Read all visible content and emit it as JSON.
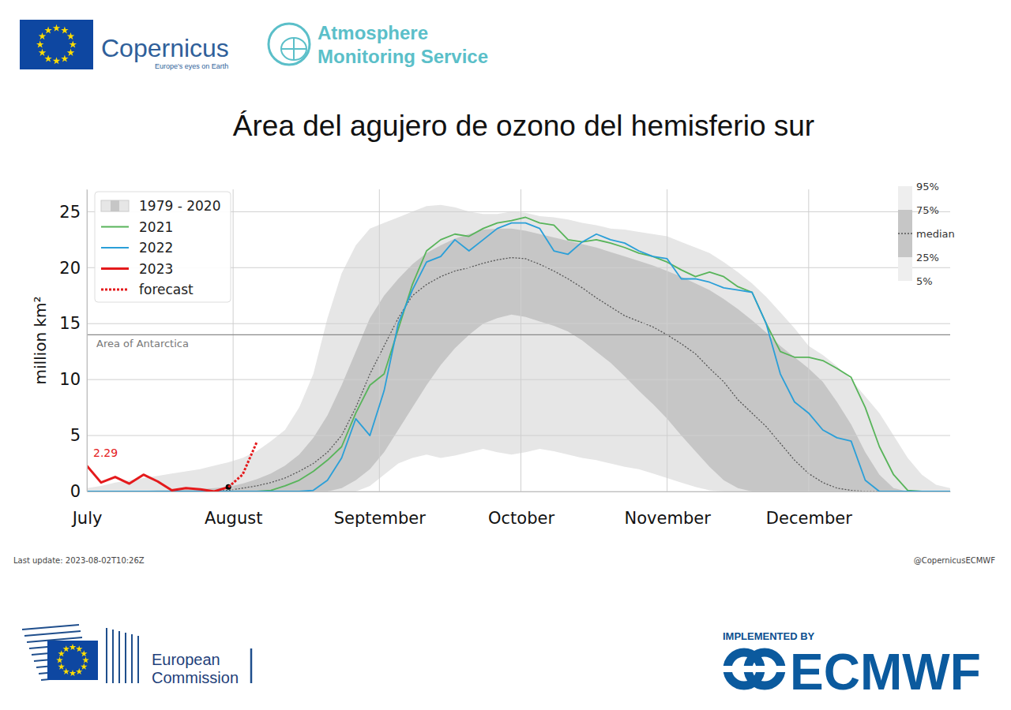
{
  "header": {
    "copernicus": "Copernicus",
    "copernicus_tagline": "Europe's eyes on Earth",
    "service": [
      "Atmosphere",
      "Monitoring Service"
    ]
  },
  "footer": {
    "last_update": "Last update: 2023-08-02T10:26Z",
    "credit": "@CopernicusECMWF",
    "commission": [
      "European",
      "Commission"
    ],
    "implemented_by": "IMPLEMENTED BY",
    "ecmwf": "ECMWF"
  },
  "chart_data": {
    "type": "line",
    "title": "Área del agujero de ozono del hemisferio sur",
    "y_label": "million km²",
    "x": [
      0,
      3,
      6,
      9,
      12,
      15,
      18,
      21,
      24,
      27,
      30,
      33,
      36,
      39,
      42,
      45,
      48,
      51,
      54,
      57,
      60,
      63,
      66,
      69,
      72,
      75,
      78,
      81,
      84,
      87,
      90,
      93,
      96,
      99,
      102,
      105,
      108,
      111,
      114,
      117,
      120,
      123,
      126,
      129,
      132,
      135,
      138,
      141,
      144,
      147,
      150,
      153,
      156,
      159,
      162,
      165,
      168,
      171,
      174,
      177,
      180,
      183
    ],
    "xlim": [
      0,
      183
    ],
    "xticks": [
      {
        "value": 0,
        "label": "July"
      },
      {
        "value": 31,
        "label": "August"
      },
      {
        "value": 62,
        "label": "September"
      },
      {
        "value": 92,
        "label": "October"
      },
      {
        "value": 123,
        "label": "November"
      },
      {
        "value": 153,
        "label": "December"
      }
    ],
    "ylim": [
      0,
      27
    ],
    "yticks": [
      0,
      5,
      10,
      15,
      20,
      25
    ],
    "grid": true,
    "legend": "upper left",
    "climatology": {
      "name": "1979 - 2020",
      "colors": [
        "#e6e6e6",
        "#c6c6c6"
      ],
      "labels": {
        "p95": "95%",
        "p75": "75%",
        "median": "median",
        "p25": "25%",
        "p5": "5%"
      },
      "p95": [
        0.3,
        0.5,
        0.8,
        1.0,
        1.2,
        1.4,
        1.6,
        1.8,
        2.0,
        2.3,
        2.6,
        3.0,
        3.6,
        4.5,
        5.5,
        7.5,
        10.5,
        15.5,
        19.5,
        22.0,
        23.5,
        24.0,
        24.5,
        25.0,
        25.5,
        25.6,
        25.4,
        25.0,
        24.8,
        24.8,
        25.0,
        24.9,
        24.6,
        24.5,
        24.3,
        24.0,
        23.8,
        23.5,
        23.4,
        23.2,
        23.0,
        22.8,
        22.3,
        21.8,
        21.3,
        20.5,
        19.6,
        18.6,
        17.4,
        16.0,
        14.6,
        13.0,
        12.2,
        11.2,
        10.0,
        8.5,
        7.0,
        5.0,
        3.0,
        1.5,
        0.6,
        0.3
      ],
      "p75": [
        0,
        0,
        0,
        0,
        0.05,
        0.1,
        0.1,
        0.15,
        0.2,
        0.3,
        0.4,
        0.7,
        1.1,
        1.6,
        2.3,
        3.3,
        4.8,
        6.8,
        9.5,
        12.5,
        15.5,
        17.5,
        19.0,
        20.3,
        21.3,
        22.0,
        22.6,
        23.0,
        23.4,
        23.5,
        23.5,
        23.3,
        23.0,
        22.7,
        22.4,
        22.1,
        21.8,
        21.4,
        21.0,
        20.6,
        20.2,
        19.7,
        19.2,
        18.6,
        18.0,
        17.2,
        16.3,
        15.3,
        14.2,
        13.0,
        12.0,
        11.0,
        9.8,
        8.0,
        6.0,
        3.5,
        1.5,
        0.3,
        0,
        0,
        0,
        0
      ],
      "median": [
        0,
        0,
        0,
        0,
        0,
        0,
        0,
        0,
        0,
        0,
        0.1,
        0.3,
        0.5,
        0.8,
        1.2,
        1.8,
        2.5,
        3.5,
        5.0,
        7.5,
        10.5,
        13.0,
        15.5,
        17.5,
        18.5,
        19.2,
        19.7,
        20.0,
        20.4,
        20.7,
        20.9,
        20.8,
        20.3,
        19.7,
        19.0,
        18.2,
        17.3,
        16.5,
        15.7,
        15.2,
        14.7,
        14.0,
        13.2,
        12.3,
        11.0,
        9.8,
        8.2,
        7.0,
        5.8,
        4.3,
        2.8,
        1.6,
        0.8,
        0.3,
        0.1,
        0,
        0,
        0,
        0,
        0,
        0,
        0
      ],
      "p25": [
        0,
        0,
        0,
        0,
        0,
        0,
        0,
        0,
        0,
        0,
        0,
        0,
        0,
        0,
        0,
        0,
        0,
        0,
        0.3,
        1.0,
        2.0,
        3.5,
        5.5,
        7.5,
        9.5,
        11.3,
        12.8,
        14.0,
        15.0,
        15.5,
        15.8,
        15.6,
        15.2,
        14.8,
        14.3,
        13.5,
        12.5,
        11.5,
        10.3,
        9.0,
        7.8,
        6.5,
        5.0,
        3.6,
        2.2,
        1.0,
        0.3,
        0,
        0,
        0,
        0,
        0,
        0,
        0,
        0,
        0,
        0,
        0,
        0,
        0,
        0,
        0
      ],
      "p5": [
        0,
        0,
        0,
        0,
        0,
        0,
        0,
        0,
        0,
        0,
        0,
        0,
        0,
        0,
        0,
        0,
        0,
        0,
        0,
        0,
        0.5,
        1.5,
        2.5,
        3.0,
        3.3,
        3.0,
        3.2,
        3.5,
        3.8,
        3.5,
        3.3,
        3.5,
        3.8,
        3.6,
        3.3,
        3.0,
        2.8,
        2.5,
        2.2,
        2.0,
        1.6,
        1.2,
        0.8,
        0.4,
        0.1,
        0,
        0,
        0,
        0,
        0,
        0,
        0,
        0,
        0,
        0,
        0,
        0,
        0,
        0,
        0,
        0,
        0
      ]
    },
    "series": [
      {
        "name": "2021",
        "color": "#58b45a",
        "values": [
          0,
          0,
          0,
          0,
          0,
          0,
          0,
          0,
          0,
          0,
          0,
          0,
          0,
          0.1,
          0.5,
          1.0,
          1.8,
          2.8,
          4.0,
          7.0,
          9.5,
          10.5,
          14.5,
          18.5,
          21.5,
          22.5,
          23.0,
          22.8,
          23.5,
          24.0,
          24.2,
          24.5,
          24.0,
          23.8,
          22.5,
          22.3,
          22.5,
          22.2,
          21.8,
          21.3,
          21.0,
          20.5,
          19.8,
          19.2,
          19.6,
          19.2,
          18.3,
          17.8,
          15.0,
          12.5,
          12.0,
          12.0,
          11.7,
          11.0,
          10.2,
          7.5,
          4.0,
          1.5,
          0.1,
          0,
          0,
          0
        ]
      },
      {
        "name": "2022",
        "color": "#2a9fd8",
        "values": [
          0,
          0,
          0,
          0,
          0,
          0,
          0,
          0,
          0,
          0,
          0,
          0,
          0,
          0,
          0,
          0,
          0.1,
          1.0,
          3.0,
          6.5,
          5.0,
          9.0,
          15.0,
          18.0,
          20.5,
          21.0,
          22.5,
          21.5,
          22.5,
          23.5,
          24.0,
          24.0,
          23.5,
          21.5,
          21.2,
          22.3,
          23.0,
          22.5,
          22.2,
          21.5,
          21.0,
          20.8,
          19.0,
          19.0,
          18.7,
          18.2,
          18.0,
          17.8,
          15.0,
          10.5,
          8.0,
          7.0,
          5.5,
          4.8,
          4.5,
          1.0,
          0,
          0,
          0,
          0,
          0,
          0
        ]
      },
      {
        "name": "2023",
        "color": "#e41a1c",
        "marker": "last",
        "values": [
          2.29,
          0.8,
          1.3,
          0.7,
          1.5,
          0.9,
          0.1,
          0.3,
          0.2,
          0.0,
          0.4,
          null,
          null,
          null,
          null,
          null,
          null,
          null,
          null,
          null,
          null,
          null,
          null,
          null,
          null,
          null,
          null,
          null,
          null,
          null,
          null,
          null,
          null,
          null,
          null,
          null,
          null,
          null,
          null,
          null,
          null,
          null,
          null,
          null,
          null,
          null,
          null,
          null,
          null,
          null,
          null,
          null,
          null,
          null,
          null,
          null,
          null,
          null,
          null,
          null,
          null,
          null
        ]
      },
      {
        "name": "forecast",
        "color": "#e41a1c",
        "line_style": "dotted",
        "values": [
          null,
          null,
          null,
          null,
          null,
          null,
          null,
          null,
          null,
          null,
          0.4,
          1.5,
          4.4,
          null,
          null,
          null,
          null,
          null,
          null,
          null,
          null,
          null,
          null,
          null,
          null,
          null,
          null,
          null,
          null,
          null,
          null,
          null,
          null,
          null,
          null,
          null,
          null,
          null,
          null,
          null,
          null,
          null,
          null,
          null,
          null,
          null,
          null,
          null,
          null,
          null,
          null,
          null,
          null,
          null,
          null,
          null,
          null,
          null,
          null,
          null,
          null,
          null
        ]
      }
    ],
    "reference_lines": [
      {
        "value": 14,
        "label": "Area of Antarctica"
      }
    ],
    "annotations": [
      {
        "text": "2.29",
        "x": 0,
        "y": 2.29,
        "color": "#e41a1c"
      }
    ]
  }
}
